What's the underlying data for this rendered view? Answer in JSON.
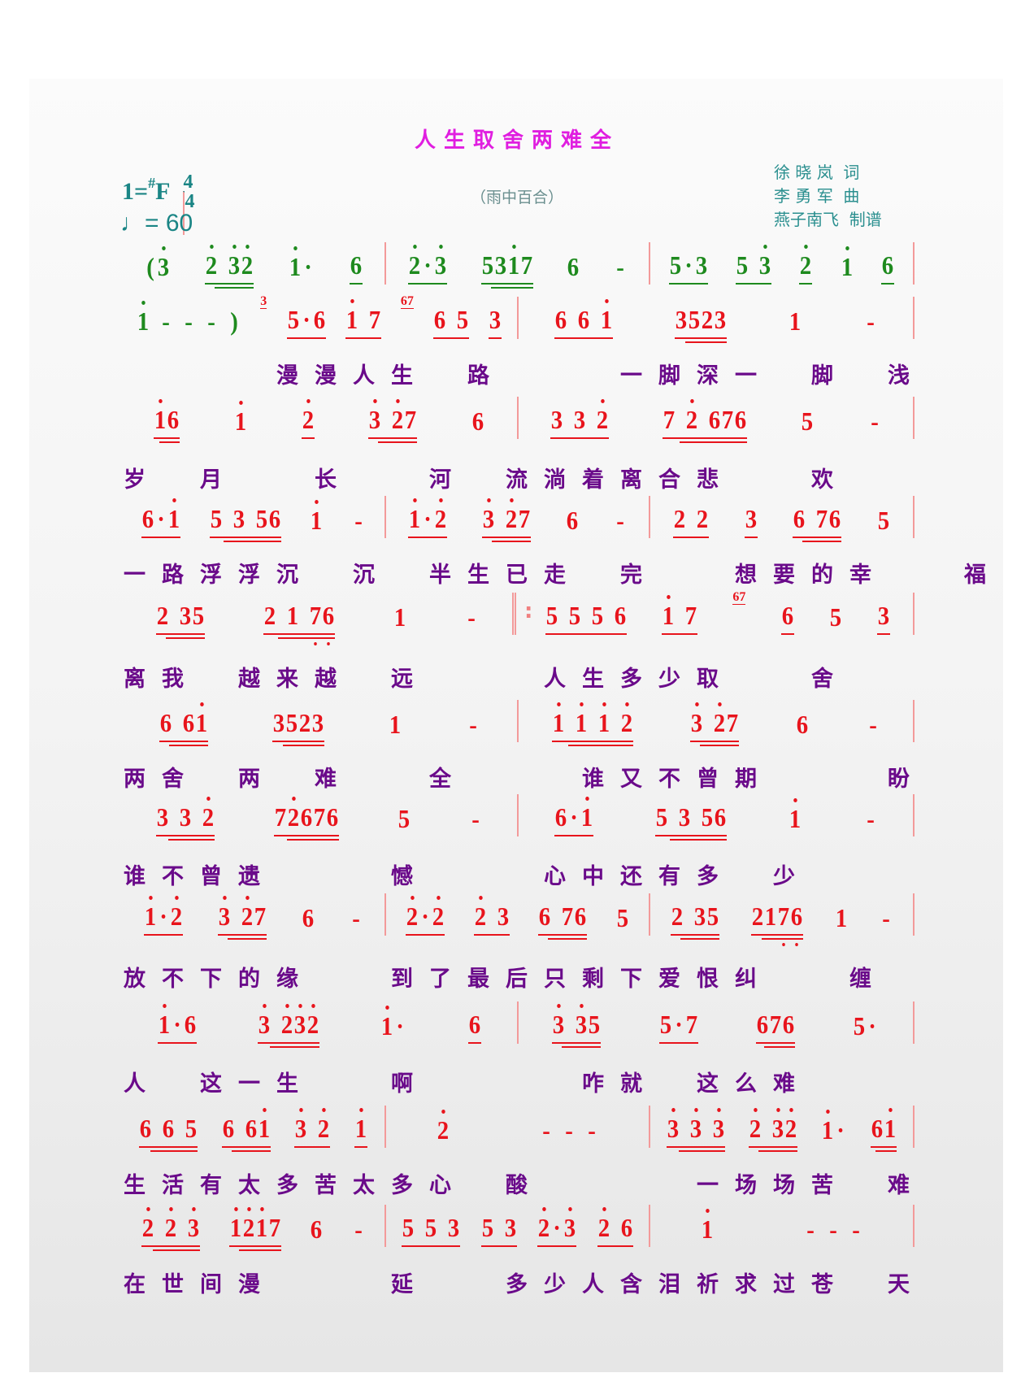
{
  "title": "人生取舍两难全",
  "subtitle": "（雨中百合）",
  "key": {
    "do": "1=",
    "sharp": "#",
    "note": "F",
    "ts_top": "4",
    "ts_bottom": "4",
    "tempo": "♩= 60"
  },
  "credits": {
    "lyricist": "徐 晓 岚  词",
    "composer": "李 勇 军  曲",
    "transcriber": "燕子南飞  制谱"
  },
  "colors": {
    "notes": "#e8141c",
    "intro_notes": "#1e8a1e",
    "lyrics": "#6a0a8a",
    "title": "#e01ee0",
    "header": "#1a8585"
  },
  "rows": [
    {
      "measures": [
        {
          "groups": [
            {
              "t": "(3'",
              "c": "g"
            },
            {
              "t": "2' 3'2'",
              "u": 2,
              "c": "g"
            },
            {
              "t": "1'·",
              "c": "g"
            },
            {
              "t": "6",
              "u": 1,
              "c": "g"
            }
          ]
        },
        {
          "groups": [
            {
              "t": "2'·3'",
              "u": 1,
              "c": "g"
            },
            {
              "t": "531'7",
              "u": 2,
              "c": "g"
            },
            {
              "t": "6",
              "c": "g"
            },
            {
              "t": "-",
              "c": "g"
            }
          ]
        },
        {
          "groups": [
            {
              "t": "5·3",
              "u": 1,
              "c": "g"
            },
            {
              "t": "5 3'",
              "u": 1,
              "c": "g"
            },
            {
              "t": "2'",
              "u": 1,
              "c": "g"
            },
            {
              "t": "1'",
              "c": "g"
            },
            {
              "t": "6",
              "u": 1,
              "c": "g"
            }
          ]
        }
      ],
      "lyrics": ""
    },
    {
      "measures": [
        {
          "groups": [
            {
              "t": "1' - - - )",
              "c": "g"
            },
            {
              "grace": "3"
            },
            {
              "t": "5·6",
              "u": 1
            },
            {
              "t": "1' 7",
              "u": 1
            },
            {
              "grace": "67"
            },
            {
              "t": "6 5",
              "u": 1
            },
            {
              "t": "3",
              "u": 1
            }
          ]
        },
        {
          "groups": [
            {
              "t": "6 6 1'",
              "u": 1
            },
            {
              "t": "3523",
              "u": 2
            },
            {
              "t": "1"
            },
            {
              "t": "-"
            }
          ]
        }
      ],
      "lyrics": "　　　　漫漫人生　路　　　一脚深一　脚　浅"
    },
    {
      "measures": [
        {
          "groups": [
            {
              "t": "1'6",
              "u": 2
            },
            {
              "t": "1'"
            },
            {
              "t": "2'",
              "u": 1
            },
            {
              "t": "3' 2'7",
              "u": 2
            },
            {
              "t": "6"
            }
          ]
        },
        {
          "groups": [
            {
              "t": "3 3 2'",
              "u": 1
            },
            {
              "t": "7 2' 676",
              "u": 2
            },
            {
              "t": "5"
            },
            {
              "t": "-"
            }
          ]
        }
      ],
      "lyrics": "岁　月　　长　　河　流淌着离合悲　　欢"
    },
    {
      "measures": [
        {
          "groups": [
            {
              "t": "6·1'",
              "u": 1
            },
            {
              "t": "5 3 56",
              "u": 2
            },
            {
              "t": "1'"
            },
            {
              "t": "-"
            }
          ]
        },
        {
          "groups": [
            {
              "t": "1'·2'",
              "u": 1
            },
            {
              "t": "3' 2'7",
              "u": 2
            },
            {
              "t": "6"
            },
            {
              "t": "-"
            }
          ]
        },
        {
          "groups": [
            {
              "t": "2 2",
              "u": 1
            },
            {
              "t": "3",
              "u": 1
            },
            {
              "t": "6 76",
              "u": 2
            },
            {
              "t": "5"
            }
          ]
        }
      ],
      "lyrics": "一路浮浮沉　沉　半生已走　完　　想要的幸　　福"
    },
    {
      "measures": [
        {
          "groups": [
            {
              "t": "2 35",
              "u": 2
            },
            {
              "t": "2 1 7,6,",
              "u": 2
            },
            {
              "t": "1"
            },
            {
              "t": "-"
            }
          ]
        },
        {
          "start": "repeat",
          "groups": [
            {
              "t": "5 5 5 6",
              "u": 1
            },
            {
              "t": "1' 7",
              "u": 1
            },
            {
              "grace": "67"
            },
            {
              "t": "6",
              "u": 1
            },
            {
              "t": "5"
            },
            {
              "t": "3",
              "u": 1
            }
          ]
        }
      ],
      "lyrics": "离我　越来越　远　　　人生多少取　　舍"
    },
    {
      "measures": [
        {
          "groups": [
            {
              "t": "6 61'",
              "u": 2
            },
            {
              "t": "3523",
              "u": 2
            },
            {
              "t": "1"
            },
            {
              "t": "-"
            }
          ]
        },
        {
          "groups": [
            {
              "t": "1' 1' 1' 2'",
              "u": 2
            },
            {
              "t": "3' 2'7",
              "u": 2
            },
            {
              "t": "6"
            },
            {
              "t": "-"
            }
          ]
        }
      ],
      "lyrics": "两舍　两　难　　全　　　谁又不曾期　　　盼"
    },
    {
      "measures": [
        {
          "groups": [
            {
              "t": "3 3 2'",
              "u": 2
            },
            {
              "t": "72'676",
              "u": 2
            },
            {
              "t": "5"
            },
            {
              "t": "-"
            }
          ]
        },
        {
          "groups": [
            {
              "t": "6·1'",
              "u": 1
            },
            {
              "t": "5 3 56",
              "u": 2
            },
            {
              "t": "1'"
            },
            {
              "t": "-"
            }
          ]
        }
      ],
      "lyrics": "谁不曾遗　　　憾　　　心中还有多　少"
    },
    {
      "measures": [
        {
          "groups": [
            {
              "t": "1'·2'",
              "u": 1
            },
            {
              "t": "3' 2'7",
              "u": 2
            },
            {
              "t": "6"
            },
            {
              "t": "-"
            }
          ]
        },
        {
          "groups": [
            {
              "t": "2'·2'",
              "u": 1
            },
            {
              "t": "2' 3",
              "u": 1
            },
            {
              "t": "6 76",
              "u": 2
            },
            {
              "t": "5"
            }
          ]
        },
        {
          "groups": [
            {
              "t": "2 35",
              "u": 2
            },
            {
              "t": "217,6,",
              "u": 2
            },
            {
              "t": "1"
            },
            {
              "t": "-"
            }
          ]
        }
      ],
      "lyrics": "放不下的缘　　到了最后只剩下爱恨纠　　缠"
    },
    {
      "measures": [
        {
          "groups": [
            {
              "t": "1'·6",
              "u": 1
            },
            {
              "t": "3' 2'3'2'",
              "u": 2
            },
            {
              "t": "1'·"
            },
            {
              "t": "6",
              "u": 1
            }
          ]
        },
        {
          "groups": [
            {
              "t": "3' 3'5",
              "u": 2
            },
            {
              "t": "5·7",
              "u": 1
            },
            {
              "t": "676",
              "u": 2
            },
            {
              "t": "5·"
            }
          ]
        }
      ],
      "lyrics": "人　这一生　　啊　　　　咋就　这么难"
    },
    {
      "measures": [
        {
          "groups": [
            {
              "t": "6 6 5",
              "u": 2
            },
            {
              "t": "6 61'",
              "u": 2
            },
            {
              "t": "3' 2'",
              "u": 1
            },
            {
              "t": "1'",
              "u": 1
            }
          ]
        },
        {
          "groups": [
            {
              "t": "2'"
            },
            {
              "t": "- - -"
            }
          ]
        },
        {
          "groups": [
            {
              "t": "3' 3' 3'",
              "u": 2
            },
            {
              "t": "2' 3'2'",
              "u": 2
            },
            {
              "t": "1'·"
            },
            {
              "t": "61'",
              "u": 2
            }
          ]
        }
      ],
      "lyrics": "生活有太多苦太多心　酸　　　　一场场苦　难"
    },
    {
      "measures": [
        {
          "groups": [
            {
              "t": "2' 2' 3'",
              "u": 2
            },
            {
              "t": "1'2'1'7",
              "u": 2
            },
            {
              "t": "6"
            },
            {
              "t": "-"
            }
          ]
        },
        {
          "groups": [
            {
              "t": "5 5 3",
              "u": 1
            },
            {
              "t": "5 3",
              "u": 1
            },
            {
              "t": "2'·3'",
              "u": 1
            },
            {
              "t": "2' 6",
              "u": 1
            }
          ]
        },
        {
          "groups": [
            {
              "t": "1'"
            },
            {
              "t": "- - -"
            }
          ]
        }
      ],
      "lyrics": "在世间漫　　　延　　多少人含泪祈求过苍　天"
    }
  ]
}
